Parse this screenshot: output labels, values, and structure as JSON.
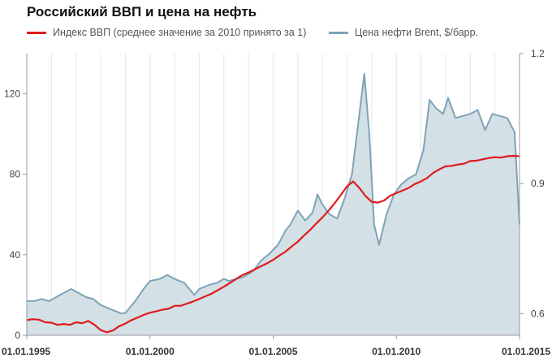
{
  "title": "Российский ВВП и цена на нефть",
  "legend": {
    "gdp": "Индекс ВВП (среднее значение за 2010 принято за 1)",
    "brent": "Цена нефти Brent, $/барр."
  },
  "colors": {
    "gdp": "#e01b1b",
    "brent_line": "#7fa3b6",
    "brent_fill": "#d3e0e6",
    "grid": "#e6e6e6",
    "axis": "#999999"
  },
  "chart_data": {
    "type": "area",
    "left_axis": {
      "series": "Цена нефти Brent, $/барр.",
      "ticks": [
        0,
        40,
        80,
        120
      ],
      "ylim": [
        0,
        140
      ]
    },
    "right_axis": {
      "series": "Индекс ВВП (среднее значение за 2010 принято за 1)",
      "ticks": [
        0.6,
        0.9,
        1.2
      ],
      "tick_labels": [
        "0.6",
        "0.9",
        "1.2"
      ],
      "ylim": [
        0.55,
        1.2
      ]
    },
    "x_ticks": [
      "01.01.1995",
      "01.01.2000",
      "01.01.2005",
      "01.01.2010",
      "01.01.2015"
    ],
    "xlim": [
      1995.0,
      2015.0
    ],
    "grid": "vertical",
    "series": [
      {
        "name": "Цена нефти Brent, $/барр.",
        "axis": "left",
        "x": [
          1995.0,
          1995.3,
          1995.6,
          1995.9,
          1996.2,
          1996.5,
          1996.8,
          1997.1,
          1997.4,
          1997.7,
          1998.0,
          1998.4,
          1998.8,
          1999.0,
          1999.4,
          1999.8,
          2000.0,
          2000.4,
          2000.7,
          2001.0,
          2001.4,
          2001.8,
          2002.0,
          2002.4,
          2002.7,
          2003.0,
          2003.2,
          2003.5,
          2003.8,
          2004.2,
          2004.5,
          2004.8,
          2005.2,
          2005.5,
          2005.7,
          2006.0,
          2006.3,
          2006.6,
          2006.8,
          2007.0,
          2007.3,
          2007.6,
          2007.9,
          2008.2,
          2008.45,
          2008.7,
          2008.9,
          2009.1,
          2009.3,
          2009.6,
          2009.9,
          2010.2,
          2010.5,
          2010.8,
          2011.1,
          2011.35,
          2011.6,
          2011.9,
          2012.1,
          2012.4,
          2012.7,
          2013.0,
          2013.3,
          2013.6,
          2013.9,
          2014.2,
          2014.5,
          2014.8,
          2015.0
        ],
        "values": [
          17,
          17,
          18,
          17,
          19,
          21,
          23,
          21,
          19,
          18,
          15,
          13,
          11,
          11,
          17,
          24,
          27,
          28,
          30,
          28,
          26,
          20,
          23,
          25,
          26,
          28,
          27,
          28,
          29,
          32,
          37,
          40,
          45,
          52,
          55,
          62,
          57,
          61,
          70,
          65,
          60,
          58,
          68,
          80,
          105,
          130,
          100,
          55,
          45,
          60,
          70,
          75,
          78,
          80,
          92,
          117,
          113,
          110,
          118,
          108,
          109,
          110,
          112,
          102,
          110,
          109,
          108,
          101,
          55
        ]
      },
      {
        "name": "Индекс ВВП (среднее значение за 2010 принято за 1)",
        "axis": "right",
        "x": [
          1995.0,
          1995.25,
          1995.5,
          1995.75,
          1996.0,
          1996.25,
          1996.5,
          1996.75,
          1997.0,
          1997.25,
          1997.5,
          1997.75,
          1998.0,
          1998.25,
          1998.5,
          1998.75,
          1999.0,
          1999.25,
          1999.5,
          1999.75,
          2000.0,
          2000.25,
          2000.5,
          2000.75,
          2001.0,
          2001.25,
          2001.5,
          2001.75,
          2002.0,
          2002.25,
          2002.5,
          2002.75,
          2003.0,
          2003.25,
          2003.5,
          2003.75,
          2004.0,
          2004.25,
          2004.5,
          2004.75,
          2005.0,
          2005.25,
          2005.5,
          2005.75,
          2006.0,
          2006.25,
          2006.5,
          2006.75,
          2007.0,
          2007.25,
          2007.5,
          2007.75,
          2008.0,
          2008.25,
          2008.5,
          2008.75,
          2009.0,
          2009.25,
          2009.5,
          2009.75,
          2010.0,
          2010.25,
          2010.5,
          2010.75,
          2011.0,
          2011.25,
          2011.5,
          2011.75,
          2012.0,
          2012.25,
          2012.5,
          2012.75,
          2013.0,
          2013.25,
          2013.5,
          2013.75,
          2014.0,
          2014.25,
          2014.5,
          2014.75,
          2015.0
        ],
        "values": [
          0.585,
          0.587,
          0.586,
          0.58,
          0.579,
          0.574,
          0.576,
          0.574,
          0.58,
          0.578,
          0.583,
          0.574,
          0.562,
          0.557,
          0.561,
          0.571,
          0.577,
          0.585,
          0.591,
          0.597,
          0.602,
          0.605,
          0.609,
          0.611,
          0.618,
          0.618,
          0.623,
          0.628,
          0.634,
          0.64,
          0.646,
          0.654,
          0.662,
          0.671,
          0.68,
          0.689,
          0.695,
          0.702,
          0.709,
          0.716,
          0.724,
          0.734,
          0.743,
          0.755,
          0.766,
          0.78,
          0.793,
          0.808,
          0.822,
          0.838,
          0.855,
          0.874,
          0.894,
          0.905,
          0.89,
          0.871,
          0.858,
          0.856,
          0.861,
          0.872,
          0.878,
          0.884,
          0.89,
          0.899,
          0.905,
          0.913,
          0.925,
          0.933,
          0.94,
          0.941,
          0.944,
          0.946,
          0.952,
          0.953,
          0.956,
          0.959,
          0.961,
          0.96,
          0.963,
          0.964,
          0.963
        ]
      }
    ]
  }
}
